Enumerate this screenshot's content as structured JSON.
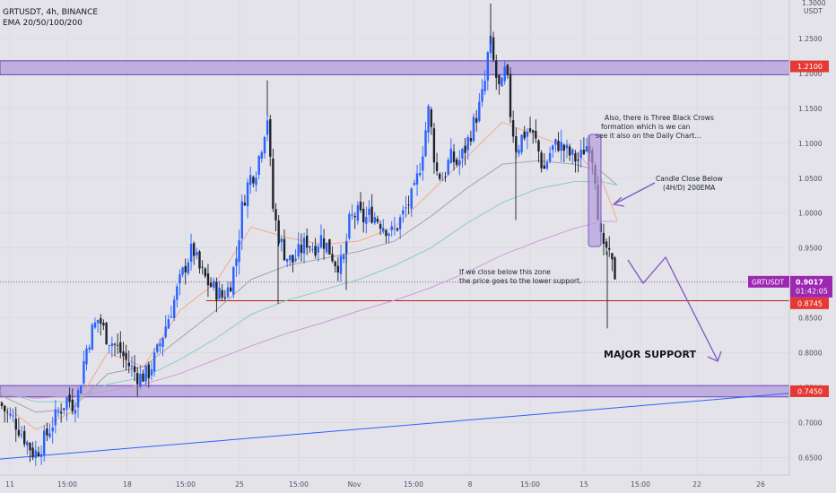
{
  "header": {
    "symbol_line": "GRTUSDT, 4h, BINANCE",
    "indicator_line": "EMA 20/50/100/200"
  },
  "price_axis": {
    "unit_top": "1.3000",
    "unit_label": "USDT",
    "ticks": [
      "1.2500",
      "1.2000",
      "1.1500",
      "1.1000",
      "1.0500",
      "1.0000",
      "0.9500",
      "0.9000",
      "0.8500",
      "0.8000",
      "0.7500",
      "0.7000",
      "0.6500"
    ],
    "badges": {
      "resistance": "1.2100",
      "last_price": "0.9017",
      "countdown": "01:42:05",
      "support_line": "0.8745",
      "major_support": "0.7450",
      "symbol": "GRTUSDT"
    }
  },
  "time_axis": {
    "labels": [
      "11",
      "15:00",
      "18",
      "15:00",
      "25",
      "15:00",
      "Nov",
      "15:00",
      "8",
      "15:00",
      "15",
      "15:00",
      "22",
      "26"
    ]
  },
  "annotations": {
    "three_crows": [
      "Also, there is Three Black Crows",
      "formation which is we can",
      "see it also on the Daily Chart..."
    ],
    "candle_close": [
      "Candle Close Below",
      "(4H/D) 200EMA"
    ],
    "zone_note": [
      "If we close below this zone",
      "the price goes to the lower support."
    ],
    "major_support": "MAJOR SUPPORT"
  },
  "colors": {
    "background": "#e3e3e9",
    "candle_up": "#2962ff",
    "candle_down": "#1e222d",
    "zone_fill": "#b39ddb",
    "zone_border": "#7e57c2",
    "arrow": "#7e57c2",
    "support_line": "#b71c1c",
    "trendline": "#2962ff",
    "badge_red": "#e53935",
    "badge_purple": "#9c27b0",
    "ema20": "#f4a582",
    "ema50": "#9e9e9e",
    "ema100": "#80cbc4",
    "ema200": "#ce93d8"
  },
  "chart_data": {
    "type": "candlestick",
    "symbol": "GRTUSDT",
    "interval": "4h",
    "exchange": "BINANCE",
    "ylim": [
      0.625,
      1.305
    ],
    "levels": {
      "resistance_zone": [
        1.198,
        1.218
      ],
      "support_line": 0.8745,
      "major_support_zone": [
        0.737,
        0.753
      ],
      "last_price": 0.9017
    },
    "trendline": [
      [
        0,
        0.648
      ],
      [
        880,
        0.742
      ]
    ],
    "x_ticks": [
      {
        "label": "11",
        "x": 11
      },
      {
        "label": "15:00",
        "x": 75
      },
      {
        "label": "18",
        "x": 142
      },
      {
        "label": "15:00",
        "x": 207
      },
      {
        "label": "25",
        "x": 267
      },
      {
        "label": "15:00",
        "x": 333
      },
      {
        "label": "Nov",
        "x": 395
      },
      {
        "label": "15:00",
        "x": 461
      },
      {
        "label": "8",
        "x": 524
      },
      {
        "label": "15:00",
        "x": 591
      },
      {
        "label": "15",
        "x": 651
      },
      {
        "label": "15:00",
        "x": 714
      },
      {
        "label": "22",
        "x": 777
      },
      {
        "label": "26",
        "x": 848
      }
    ],
    "anchors": [
      [
        0,
        0.728
      ],
      [
        8,
        0.712
      ],
      [
        15,
        0.705
      ],
      [
        22,
        0.69
      ],
      [
        30,
        0.672
      ],
      [
        38,
        0.655
      ],
      [
        45,
        0.665
      ],
      [
        55,
        0.69
      ],
      [
        65,
        0.715
      ],
      [
        75,
        0.735
      ],
      [
        82,
        0.725
      ],
      [
        88,
        0.745
      ],
      [
        95,
        0.8
      ],
      [
        102,
        0.83
      ],
      [
        110,
        0.85
      ],
      [
        118,
        0.825
      ],
      [
        125,
        0.815
      ],
      [
        135,
        0.8
      ],
      [
        145,
        0.78
      ],
      [
        155,
        0.765
      ],
      [
        165,
        0.77
      ],
      [
        175,
        0.8
      ],
      [
        185,
        0.84
      ],
      [
        193,
        0.87
      ],
      [
        200,
        0.9
      ],
      [
        208,
        0.93
      ],
      [
        215,
        0.95
      ],
      [
        222,
        0.92
      ],
      [
        232,
        0.9
      ],
      [
        240,
        0.89
      ],
      [
        248,
        0.88
      ],
      [
        256,
        0.895
      ],
      [
        264,
        0.94
      ],
      [
        270,
        1.01
      ],
      [
        278,
        1.05
      ],
      [
        285,
        1.06
      ],
      [
        292,
        1.1
      ],
      [
        298,
        1.14
      ],
      [
        304,
        1.01
      ],
      [
        310,
        0.97
      ],
      [
        318,
        0.94
      ],
      [
        326,
        0.93
      ],
      [
        334,
        0.945
      ],
      [
        342,
        0.96
      ],
      [
        350,
        0.95
      ],
      [
        358,
        0.965
      ],
      [
        366,
        0.95
      ],
      [
        374,
        0.93
      ],
      [
        382,
        0.925
      ],
      [
        390,
        0.99
      ],
      [
        398,
        1.0
      ],
      [
        406,
        0.99
      ],
      [
        414,
        1.0
      ],
      [
        422,
        0.99
      ],
      [
        430,
        0.98
      ],
      [
        438,
        0.97
      ],
      [
        446,
        0.99
      ],
      [
        454,
        1.01
      ],
      [
        462,
        1.03
      ],
      [
        470,
        1.08
      ],
      [
        478,
        1.15
      ],
      [
        486,
        1.06
      ],
      [
        494,
        1.05
      ],
      [
        502,
        1.08
      ],
      [
        510,
        1.07
      ],
      [
        518,
        1.09
      ],
      [
        526,
        1.12
      ],
      [
        534,
        1.15
      ],
      [
        540,
        1.18
      ],
      [
        546,
        1.25
      ],
      [
        552,
        1.2
      ],
      [
        558,
        1.17
      ],
      [
        564,
        1.21
      ],
      [
        570,
        1.13
      ],
      [
        576,
        1.09
      ],
      [
        582,
        1.11
      ],
      [
        590,
        1.12
      ],
      [
        598,
        1.1
      ],
      [
        606,
        1.06
      ],
      [
        614,
        1.09
      ],
      [
        622,
        1.1
      ],
      [
        630,
        1.09
      ],
      [
        638,
        1.08
      ],
      [
        646,
        1.075
      ],
      [
        652,
        1.095
      ],
      [
        658,
        1.1
      ],
      [
        664,
        1.05
      ],
      [
        668,
        0.98
      ],
      [
        672,
        0.94
      ],
      [
        676,
        0.95
      ],
      [
        680,
        0.93
      ],
      [
        684,
        0.92
      ],
      [
        688,
        0.9
      ]
    ],
    "ema": [
      {
        "name": "EMA 20",
        "color_key": "ema20",
        "points": [
          [
            0,
            0.73
          ],
          [
            40,
            0.69
          ],
          [
            80,
            0.715
          ],
          [
            120,
            0.8
          ],
          [
            160,
            0.78
          ],
          [
            200,
            0.86
          ],
          [
            240,
            0.9
          ],
          [
            280,
            0.98
          ],
          [
            320,
            0.965
          ],
          [
            360,
            0.955
          ],
          [
            400,
            0.96
          ],
          [
            440,
            0.98
          ],
          [
            480,
            1.03
          ],
          [
            520,
            1.08
          ],
          [
            560,
            1.13
          ],
          [
            600,
            1.11
          ],
          [
            640,
            1.09
          ],
          [
            670,
            1.05
          ],
          [
            688,
            0.99
          ]
        ]
      },
      {
        "name": "EMA 50",
        "color_key": "ema50",
        "points": [
          [
            0,
            0.74
          ],
          [
            40,
            0.715
          ],
          [
            80,
            0.72
          ],
          [
            120,
            0.77
          ],
          [
            160,
            0.78
          ],
          [
            200,
            0.82
          ],
          [
            240,
            0.86
          ],
          [
            280,
            0.905
          ],
          [
            320,
            0.925
          ],
          [
            360,
            0.935
          ],
          [
            400,
            0.945
          ],
          [
            440,
            0.96
          ],
          [
            480,
            0.995
          ],
          [
            520,
            1.035
          ],
          [
            560,
            1.07
          ],
          [
            600,
            1.075
          ],
          [
            640,
            1.07
          ],
          [
            670,
            1.06
          ],
          [
            688,
            1.04
          ]
        ]
      },
      {
        "name": "EMA 100",
        "color_key": "ema100",
        "points": [
          [
            0,
            0.745
          ],
          [
            40,
            0.73
          ],
          [
            80,
            0.73
          ],
          [
            120,
            0.755
          ],
          [
            160,
            0.765
          ],
          [
            200,
            0.79
          ],
          [
            240,
            0.82
          ],
          [
            280,
            0.855
          ],
          [
            320,
            0.875
          ],
          [
            360,
            0.89
          ],
          [
            400,
            0.905
          ],
          [
            440,
            0.925
          ],
          [
            480,
            0.95
          ],
          [
            520,
            0.985
          ],
          [
            560,
            1.015
          ],
          [
            600,
            1.035
          ],
          [
            640,
            1.045
          ],
          [
            670,
            1.045
          ],
          [
            688,
            1.04
          ]
        ]
      },
      {
        "name": "EMA 200",
        "color_key": "ema200",
        "points": [
          [
            0,
            0.74
          ],
          [
            40,
            0.735
          ],
          [
            80,
            0.738
          ],
          [
            120,
            0.745
          ],
          [
            160,
            0.755
          ],
          [
            200,
            0.77
          ],
          [
            240,
            0.79
          ],
          [
            280,
            0.81
          ],
          [
            320,
            0.828
          ],
          [
            360,
            0.843
          ],
          [
            400,
            0.86
          ],
          [
            440,
            0.875
          ],
          [
            480,
            0.893
          ],
          [
            520,
            0.915
          ],
          [
            560,
            0.94
          ],
          [
            600,
            0.96
          ],
          [
            640,
            0.978
          ],
          [
            670,
            0.988
          ],
          [
            688,
            0.988
          ]
        ]
      }
    ]
  }
}
